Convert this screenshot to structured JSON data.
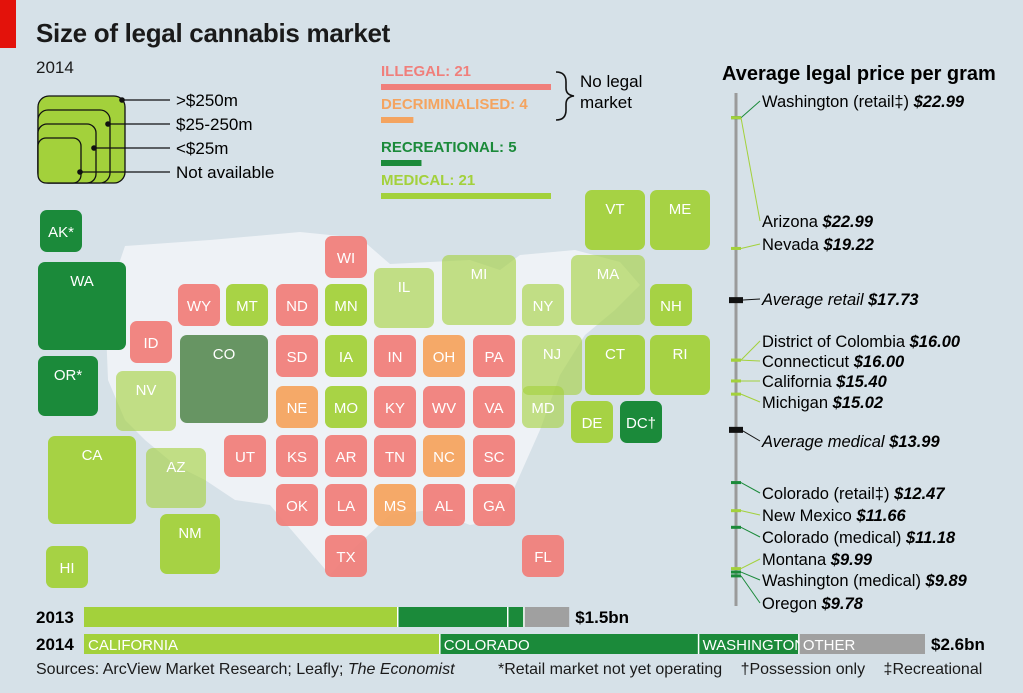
{
  "title": "Size of legal cannabis market",
  "subtitle": "2014",
  "size_legend": {
    "items": [
      ">$250m",
      "$25-250m",
      "<$25m",
      "Not available"
    ]
  },
  "status_legend": {
    "items": [
      {
        "label": "ILLEGAL: 21",
        "count": 21,
        "color": "#f07f7b"
      },
      {
        "label": "DECRIMINALISED: 4",
        "count": 4,
        "color": "#f4a460"
      },
      {
        "label": "RECREATIONAL: 5",
        "count": 5,
        "color": "#1b8a3a"
      },
      {
        "label": "MEDICAL: 21",
        "count": 21,
        "color": "#a3d13b"
      }
    ],
    "brace_label_line1": "No legal",
    "brace_label_line2": "market"
  },
  "colors": {
    "illegal": "#f07f7b",
    "decriminalised": "#f4a460",
    "recreational": "#1b8a3a",
    "medical": "#a3d13b",
    "other": "#a0a0a0",
    "accent": "#e3120b",
    "background": "#d6e1e8"
  },
  "states": [
    {
      "code": "AK*",
      "status": "recreational",
      "size": "<$25m"
    },
    {
      "code": "WA",
      "status": "recreational",
      "size": ">$250m"
    },
    {
      "code": "OR*",
      "status": "recreational",
      "size": "$25-250m"
    },
    {
      "code": "CA",
      "status": "medical",
      "size": ">$250m"
    },
    {
      "code": "HI",
      "status": "medical",
      "size": "<$25m"
    },
    {
      "code": "ID",
      "status": "illegal",
      "size": "Not available"
    },
    {
      "code": "NV",
      "status": "medical",
      "size": "$25-250m"
    },
    {
      "code": "AZ",
      "status": "medical",
      "size": "$25-250m"
    },
    {
      "code": "NM",
      "status": "medical",
      "size": "$25-250m"
    },
    {
      "code": "WY",
      "status": "illegal",
      "size": "Not available"
    },
    {
      "code": "MT",
      "status": "medical",
      "size": "<$25m"
    },
    {
      "code": "CO",
      "status": "recreational",
      "size": ">$250m"
    },
    {
      "code": "UT",
      "status": "illegal",
      "size": "Not available"
    },
    {
      "code": "WI",
      "status": "illegal",
      "size": "Not available"
    },
    {
      "code": "ND",
      "status": "illegal",
      "size": "Not available"
    },
    {
      "code": "MN",
      "status": "medical",
      "size": "<$25m"
    },
    {
      "code": "IL",
      "status": "medical",
      "size": "$25-250m"
    },
    {
      "code": "MI",
      "status": "medical",
      "size": ">$250m"
    },
    {
      "code": "NY",
      "status": "medical",
      "size": "<$25m"
    },
    {
      "code": "MA",
      "status": "medical",
      "size": ">$250m"
    },
    {
      "code": "VT",
      "status": "medical",
      "size": "$25-250m"
    },
    {
      "code": "ME",
      "status": "medical",
      "size": "$25-250m"
    },
    {
      "code": "NH",
      "status": "medical",
      "size": "<$25m"
    },
    {
      "code": "SD",
      "status": "illegal",
      "size": "Not available"
    },
    {
      "code": "IA",
      "status": "medical",
      "size": "<$25m"
    },
    {
      "code": "IN",
      "status": "illegal",
      "size": "Not available"
    },
    {
      "code": "OH",
      "status": "decriminalised",
      "size": "Not available"
    },
    {
      "code": "PA",
      "status": "illegal",
      "size": "Not available"
    },
    {
      "code": "NJ",
      "status": "medical",
      "size": "$25-250m"
    },
    {
      "code": "CT",
      "status": "medical",
      "size": "$25-250m"
    },
    {
      "code": "RI",
      "status": "medical",
      "size": "$25-250m"
    },
    {
      "code": "NE",
      "status": "decriminalised",
      "size": "Not available"
    },
    {
      "code": "MO",
      "status": "medical",
      "size": "<$25m"
    },
    {
      "code": "KY",
      "status": "illegal",
      "size": "Not available"
    },
    {
      "code": "WV",
      "status": "illegal",
      "size": "Not available"
    },
    {
      "code": "VA",
      "status": "illegal",
      "size": "Not available"
    },
    {
      "code": "MD",
      "status": "medical",
      "size": "<$25m"
    },
    {
      "code": "DE",
      "status": "medical",
      "size": "<$25m"
    },
    {
      "code": "DC†",
      "status": "recreational",
      "size": "<$25m"
    },
    {
      "code": "KS",
      "status": "illegal",
      "size": "Not available"
    },
    {
      "code": "AR",
      "status": "illegal",
      "size": "Not available"
    },
    {
      "code": "TN",
      "status": "illegal",
      "size": "Not available"
    },
    {
      "code": "NC",
      "status": "decriminalised",
      "size": "Not available"
    },
    {
      "code": "SC",
      "status": "illegal",
      "size": "Not available"
    },
    {
      "code": "OK",
      "status": "illegal",
      "size": "Not available"
    },
    {
      "code": "LA",
      "status": "illegal",
      "size": "Not available"
    },
    {
      "code": "MS",
      "status": "decriminalised",
      "size": "Not available"
    },
    {
      "code": "AL",
      "status": "illegal",
      "size": "Not available"
    },
    {
      "code": "GA",
      "status": "illegal",
      "size": "Not available"
    },
    {
      "code": "TX",
      "status": "illegal",
      "size": "Not available"
    },
    {
      "code": "FL",
      "status": "illegal",
      "size": "Not available"
    }
  ],
  "chart_data": [
    {
      "type": "bar",
      "title": "Size of legal cannabis market",
      "subtitle": "2014",
      "orientation": "horizontal-stacked",
      "series": [
        {
          "year": "2013",
          "total": 1.5,
          "total_label": "$1.5bn",
          "segments": [
            {
              "name": "",
              "value": 0.97,
              "color": "#a3d13b"
            },
            {
              "name": "",
              "value": 0.34,
              "color": "#1b8a3a"
            },
            {
              "name": "",
              "value": 0.05,
              "color": "#1b8a3a"
            },
            {
              "name": "",
              "value": 0.14,
              "color": "#a0a0a0"
            }
          ]
        },
        {
          "year": "2014",
          "total": 2.6,
          "total_label": "$2.6bn",
          "segments": [
            {
              "name": "CALIFORNIA",
              "value": 1.1,
              "color": "#a3d13b"
            },
            {
              "name": "COLORADO",
              "value": 0.8,
              "color": "#1b8a3a"
            },
            {
              "name": "WASHINGTON",
              "value": 0.31,
              "color": "#1b8a3a"
            },
            {
              "name": "OTHER",
              "value": 0.39,
              "color": "#a0a0a0"
            }
          ]
        }
      ]
    },
    {
      "type": "scatter",
      "title": "Average legal price per gram",
      "orientation": "vertical-dot-scale",
      "ylim": [
        9.2,
        23.5
      ],
      "points": [
        {
          "name": "Washington (retail‡)",
          "price_label": "$22.99",
          "value": 22.99,
          "color": "#1b8a3a",
          "kind": "state"
        },
        {
          "name": "Arizona",
          "price_label": "$22.99",
          "value": 22.99,
          "color": "#a3d13b",
          "kind": "state"
        },
        {
          "name": "Nevada",
          "price_label": "$19.22",
          "value": 19.22,
          "color": "#a3d13b",
          "kind": "state"
        },
        {
          "name": "Average retail",
          "price_label": "$17.73",
          "value": 17.73,
          "color": "#111111",
          "kind": "average"
        },
        {
          "name": "District of Colombia",
          "price_label": "$16.00",
          "value": 16.0,
          "color": "#a3d13b",
          "kind": "state"
        },
        {
          "name": "Connecticut",
          "price_label": "$16.00",
          "value": 16.0,
          "color": "#a3d13b",
          "kind": "state"
        },
        {
          "name": "California",
          "price_label": "$15.40",
          "value": 15.4,
          "color": "#a3d13b",
          "kind": "state"
        },
        {
          "name": "Michigan",
          "price_label": "$15.02",
          "value": 15.02,
          "color": "#a3d13b",
          "kind": "state"
        },
        {
          "name": "Average medical",
          "price_label": "$13.99",
          "value": 13.99,
          "color": "#111111",
          "kind": "average"
        },
        {
          "name": "Colorado (retail‡)",
          "price_label": "$12.47",
          "value": 12.47,
          "color": "#1b8a3a",
          "kind": "state"
        },
        {
          "name": "New Mexico",
          "price_label": "$11.66",
          "value": 11.66,
          "color": "#a3d13b",
          "kind": "state"
        },
        {
          "name": "Colorado (medical)",
          "price_label": "$11.18",
          "value": 11.18,
          "color": "#1b8a3a",
          "kind": "state"
        },
        {
          "name": "Montana",
          "price_label": "$9.99",
          "value": 9.99,
          "color": "#a3d13b",
          "kind": "state"
        },
        {
          "name": "Washington (medical)",
          "price_label": "$9.89",
          "value": 9.89,
          "color": "#1b8a3a",
          "kind": "state"
        },
        {
          "name": "Oregon",
          "price_label": "$9.78",
          "value": 9.78,
          "color": "#1b8a3a",
          "kind": "state"
        }
      ]
    }
  ],
  "footer": {
    "sources_prefix": "Sources: ArcView Market Research; Leafly; ",
    "sources_italic": "The Economist",
    "note1": "*Retail market not yet operating",
    "note2": "†Possession only",
    "note3": "‡Recreational"
  }
}
